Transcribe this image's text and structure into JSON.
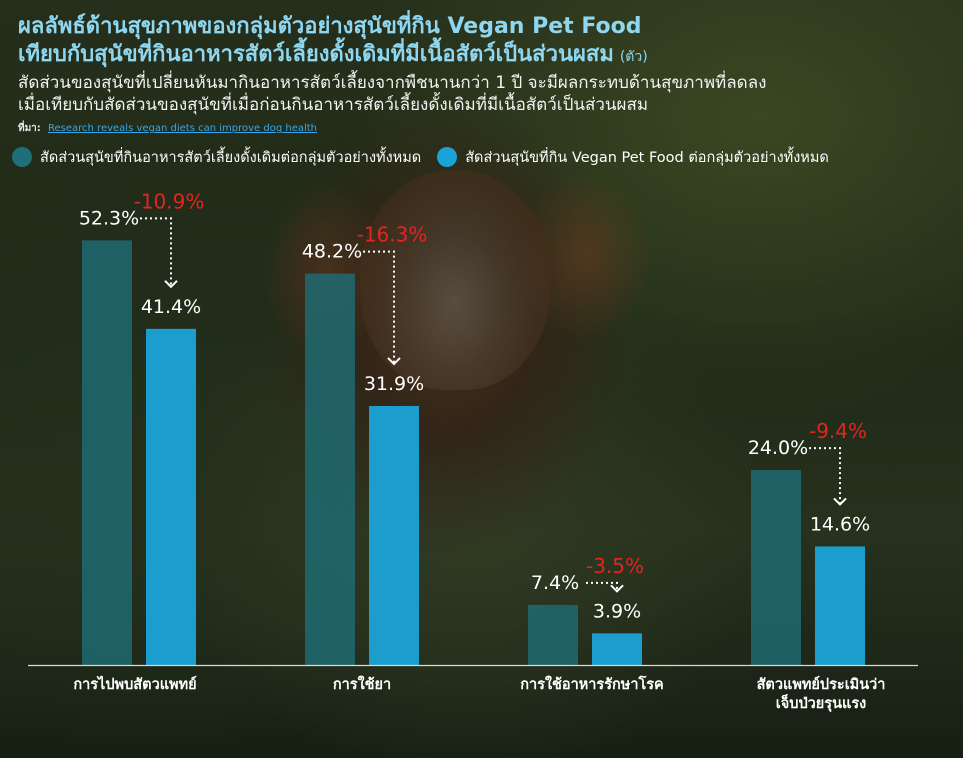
{
  "title": {
    "line1": "ผลลัพธ์ด้านสุขภาพของกลุ่มตัวอย่างสุนัขที่กิน Vegan Pet Food",
    "line2": "เทียบกับสุนัขที่กินอาหารสัตว์เลี้ยงดั้งเดิมที่มีเนื้อสัตว์เป็นส่วนผสม",
    "unit": "(ตัว)"
  },
  "subtitle": {
    "line1": "สัดส่วนของสุนัขที่เปลี่ยนหันมากินอาหารสัตว์เลี้ยงจากพืชนานกว่า 1 ปี  จะมีผลกระทบด้านสุขภาพที่ลดลง",
    "line2": "เมื่อเทียบกับสัดส่วนของสุนัขที่เมื่อก่อนกินอาหารสัตว์เลี้ยงดั้งเดิมที่มีเนื้อสัตว์เป็นส่วนผสม"
  },
  "source": {
    "label": "ที่มา:",
    "link_text": "Research reveals vegan diets can improve dog health"
  },
  "colors": {
    "conventional": "#1d6f78",
    "vegan": "#1ba3d8",
    "change": "#e3251f",
    "title": "#8fd6f0"
  },
  "chart_data": {
    "type": "bar",
    "categories": [
      [
        "การไปพบสัตวแพทย์"
      ],
      [
        "การใช้ยา"
      ],
      [
        "การใช้อาหารรักษาโรค"
      ],
      [
        "สัตวแพทย์ประเมินว่า",
        "เจ็บป่วยรุนแรง"
      ]
    ],
    "series": [
      {
        "name": "สัดส่วนสุนัขที่กินอาหารสัตว์เลี้ยงดั้งเดิมต่อกลุ่มตัวอย่างทั้งหมด",
        "values": [
          52.3,
          48.2,
          7.4,
          24.0
        ],
        "labels": [
          "52.3%",
          "48.2%",
          "7.4%",
          "24.0%"
        ]
      },
      {
        "name": "สัดส่วนสุนัขที่กิน Vegan Pet Food ต่อกลุ่มตัวอย่างทั้งหมด",
        "values": [
          41.4,
          31.9,
          3.9,
          14.6
        ],
        "labels": [
          "41.4%",
          "31.9%",
          "3.9%",
          "14.6%"
        ]
      }
    ],
    "change_labels": [
      "-10.9%",
      "-16.3%",
      "-3.5%",
      "-9.4%"
    ],
    "unit": "%",
    "ylim": [
      0,
      55
    ],
    "grid": false,
    "legend_position": "top"
  }
}
